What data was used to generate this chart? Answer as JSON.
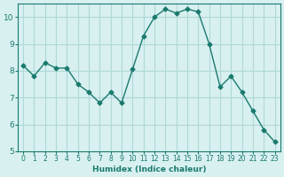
{
  "x": [
    0,
    1,
    2,
    3,
    4,
    5,
    6,
    7,
    8,
    9,
    10,
    11,
    12,
    13,
    14,
    15,
    16,
    17,
    18,
    19,
    20,
    21,
    22,
    23
  ],
  "y": [
    8.2,
    7.8,
    8.3,
    8.1,
    8.1,
    7.5,
    7.2,
    6.8,
    7.2,
    6.8,
    8.05,
    9.3,
    10.0,
    10.3,
    10.15,
    10.3,
    10.2,
    9.0,
    7.4,
    7.8,
    7.2,
    6.5,
    5.8,
    5.35
  ],
  "xlabel": "Humidex (Indice chaleur)",
  "ylabel": "",
  "title": "",
  "ylim": [
    5,
    10.5
  ],
  "xlim": [
    0,
    23
  ],
  "bg_color": "#d8f0f0",
  "grid_color": "#b0d8d8",
  "line_color": "#1a7a6e",
  "marker_color": "#1a7a6e",
  "tick_color": "#1a7a6e",
  "label_color": "#1a7a6e",
  "spine_color": "#1a7a6e",
  "yticks": [
    5,
    6,
    7,
    8,
    9,
    10
  ],
  "xticks": [
    0,
    1,
    2,
    3,
    4,
    5,
    6,
    7,
    8,
    9,
    10,
    11,
    12,
    13,
    14,
    15,
    16,
    17,
    18,
    19,
    20,
    21,
    22,
    23
  ]
}
